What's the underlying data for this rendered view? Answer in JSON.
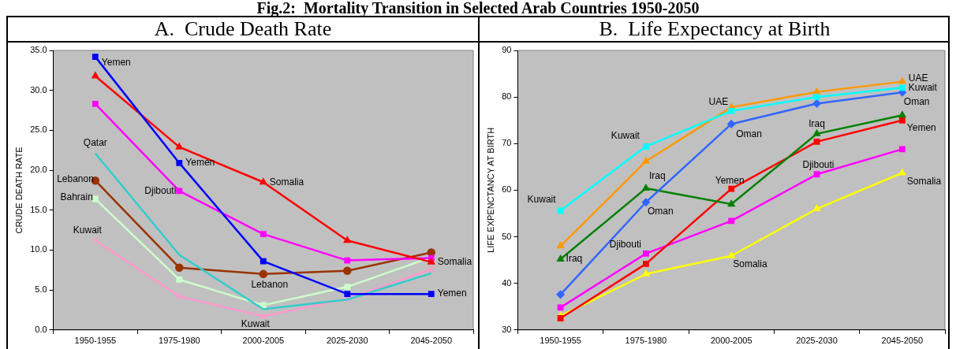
{
  "chart_data": [
    {
      "type": "line",
      "title": "A.  Crude Death Rate",
      "ylabel": "CRUDE DEATH RATE",
      "categories": [
        "1950-1955",
        "1975-1980",
        "2000-2005",
        "2025-2030",
        "2045-2050"
      ],
      "series": [
        {
          "color": "#0000ff",
          "marker": "square",
          "values": [
            34.2,
            20.9,
            8.6,
            4.5,
            4.5
          ]
        },
        {
          "color": "#ff0000",
          "marker": "triangle",
          "values": [
            31.8,
            22.9,
            18.5,
            11.2,
            8.5
          ]
        },
        {
          "color": "#ff00ff",
          "marker": "square",
          "values": [
            28.3,
            17.4,
            12.0,
            8.7,
            9.0
          ]
        },
        {
          "color": "#33cccc",
          "marker": "none",
          "values": [
            22.1,
            9.4,
            2.6,
            3.8,
            7.1
          ]
        },
        {
          "color": "#993300",
          "marker": "circle",
          "values": [
            18.7,
            7.8,
            7.0,
            7.4,
            9.7
          ]
        },
        {
          "color": "#ccffcc",
          "marker": "square",
          "values": [
            16.4,
            6.3,
            3.1,
            5.4,
            9.1
          ]
        },
        {
          "color": "#ff99cc",
          "marker": "cross",
          "values": [
            11.2,
            4.2,
            1.7,
            3.9,
            7.6
          ]
        }
      ],
      "ylim": [
        0,
        35
      ],
      "yticks": [
        {
          "value": 0,
          "label": "0.0"
        },
        {
          "value": 5,
          "label": "5.0"
        },
        {
          "value": 10,
          "label": "10.0"
        },
        {
          "value": 15,
          "label": "15.0"
        },
        {
          "value": 20,
          "label": "20.0"
        },
        {
          "value": 25,
          "label": "25.0"
        },
        {
          "value": 30,
          "label": "30.0"
        },
        {
          "value": 35,
          "label": "35.0"
        }
      ],
      "grid": false,
      "legend": false,
      "annotations": [
        "Fig.2:  Mortality Transition in Selected Arab Countries 1950-2050",
        {
          "text": "Yemen",
          "x": "1950-1955",
          "y": 34.2
        },
        {
          "text": "Yemen",
          "x": "1975-1980",
          "y": 20.9
        },
        {
          "text": "Yemen",
          "x": "2045-2050",
          "y": 4.5
        },
        {
          "text": "Somalia",
          "x": "2000-2005",
          "y": 18.5
        },
        {
          "text": "Somalia",
          "x": "2045-2050",
          "y": 8.5
        },
        {
          "text": "Djibouti",
          "x": "1975-1980",
          "y": 17.4
        },
        {
          "text": "Qatar",
          "x": "1950-1955",
          "y": 22.1
        },
        {
          "text": "Lebanon",
          "x": "1950-1955",
          "y": 18.7
        },
        {
          "text": "Lebanon",
          "x": "2000-2005",
          "y": 7.0
        },
        {
          "text": "Bahrain",
          "x": "1950-1955",
          "y": 16.4
        },
        {
          "text": "Kuwait",
          "x": "1950-1955",
          "y": 11.2
        },
        {
          "text": "Kuwait",
          "x": "2000-2005",
          "y": 1.7
        }
      ]
    },
    {
      "type": "line",
      "title": "B.  Life Expectancy at Birth",
      "ylabel": "LIFE EXPENCTANCY AT BIRTH",
      "categories": [
        "1950-1955",
        "1975-1980",
        "2000-2005",
        "2025-2030",
        "2045-2050"
      ],
      "series": [
        {
          "color": "#00ffff",
          "marker": "square",
          "values": [
            55.6,
            69.4,
            77.0,
            80.0,
            82.0
          ]
        },
        {
          "color": "#ff9900",
          "marker": "triangle",
          "values": [
            48.0,
            66.2,
            77.8,
            81.1,
            83.3
          ]
        },
        {
          "color": "#3366ff",
          "marker": "diamond",
          "values": [
            37.6,
            57.4,
            74.2,
            78.6,
            81.0
          ]
        },
        {
          "color": "#008000",
          "marker": "triangle",
          "values": [
            45.2,
            60.4,
            57.0,
            72.1,
            76.1
          ]
        },
        {
          "color": "#ff0000",
          "marker": "square",
          "values": [
            32.5,
            44.2,
            60.3,
            70.4,
            75.0
          ]
        },
        {
          "color": "#ff00ff",
          "marker": "square",
          "values": [
            34.8,
            46.4,
            53.4,
            63.4,
            68.8
          ]
        },
        {
          "color": "#ffff00",
          "marker": "triangle",
          "values": [
            33.0,
            42.0,
            45.9,
            56.0,
            63.7
          ]
        }
      ],
      "ylim": [
        30,
        90
      ],
      "yticks": [
        30,
        40,
        50,
        60,
        70,
        80,
        90
      ],
      "grid": false,
      "legend": false,
      "annotations": [
        {
          "text": "UAE",
          "x": "2045-2050",
          "y": 83.3
        },
        {
          "text": "Kuwait",
          "x": "2045-2050",
          "y": 82.0
        },
        {
          "text": "Oman",
          "x": "2045-2050",
          "y": 81.0
        },
        {
          "text": "Yemen",
          "x": "2045-2050",
          "y": 75.0
        },
        {
          "text": "Somalia",
          "x": "2045-2050",
          "y": 63.7
        },
        {
          "text": "UAE",
          "x": "2000-2005",
          "y": 77.8
        },
        {
          "text": "Oman",
          "x": "2000-2005",
          "y": 74.2
        },
        {
          "text": "Yemen",
          "x": "2000-2005",
          "y": 60.3
        },
        {
          "text": "Somalia",
          "x": "2000-2005",
          "y": 45.9
        },
        {
          "text": "Iraq",
          "x": "2025-2030",
          "y": 72.1
        },
        {
          "text": "Djibouti",
          "x": "2025-2030",
          "y": 63.4
        },
        {
          "text": "Kuwait",
          "x": "1975-1980",
          "y": 69.4
        },
        {
          "text": "Iraq",
          "x": "1975-1980",
          "y": 60.4
        },
        {
          "text": "Oman",
          "x": "1975-1980",
          "y": 57.4
        },
        {
          "text": "Djibouti",
          "x": "1975-1980",
          "y": 46.4
        },
        {
          "text": "Kuwait",
          "x": "1950-1955",
          "y": 55.6
        },
        {
          "text": "Iraq",
          "x": "1950-1955",
          "y": 45.2
        }
      ]
    }
  ]
}
